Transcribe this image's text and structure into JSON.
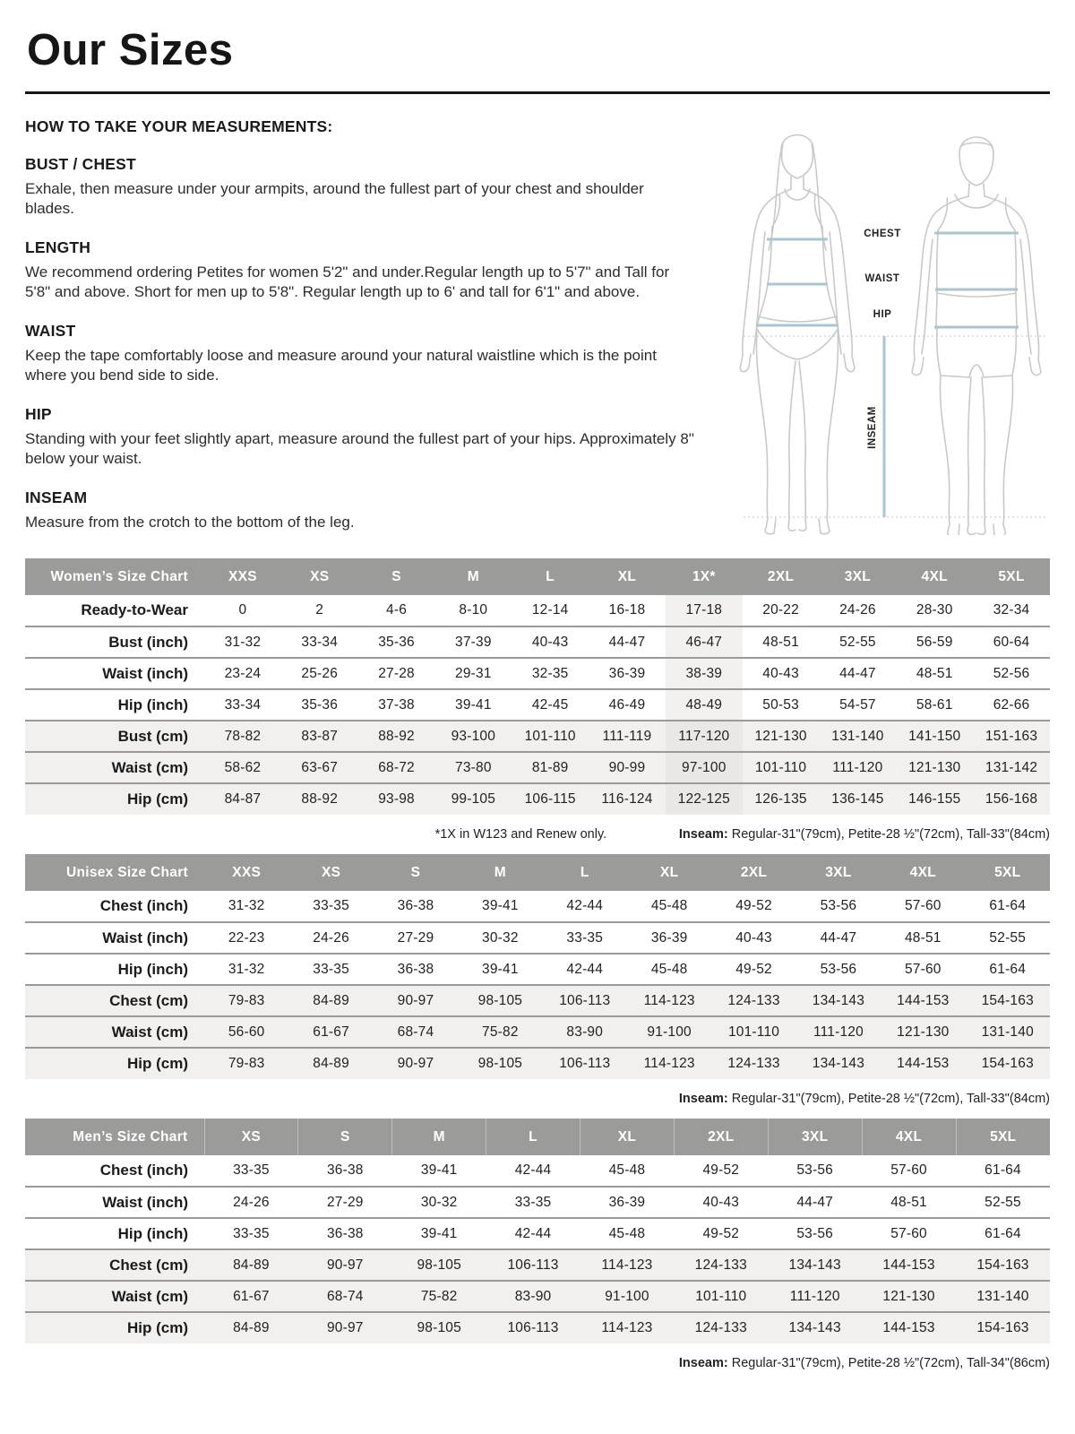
{
  "page": {
    "title": "Our Sizes"
  },
  "instructions": {
    "heading": "HOW TO TAKE YOUR MEASUREMENTS:",
    "sections": [
      {
        "title": "BUST / CHEST",
        "body": "Exhale, then measure under your armpits, around the fullest part of your chest and shoulder blades."
      },
      {
        "title": "LENGTH",
        "body": "We recommend ordering Petites for women 5'2\" and under.Regular length up to 5'7\" and Tall for 5'8\" and above. Short for men up to 5'8\". Regular length up to 6' and tall for 6'1\" and above."
      },
      {
        "title": "WAIST",
        "body": "Keep the tape comfortably loose and measure around your natural waistline which is the point where you bend side to side."
      },
      {
        "title": "HIP",
        "body": "Standing with your feet slightly apart, measure around the fullest part of your hips. Approximately 8\" below your waist."
      },
      {
        "title": "INSEAM",
        "body": "Measure from the crotch to the bottom of the leg."
      }
    ]
  },
  "diagram": {
    "chest_label": "CHEST",
    "waist_label": "WAIST",
    "hip_label": "HIP",
    "inseam_label": "INSEAM",
    "line_color": "#a9c6d2",
    "figure_color": "#c9c9c9"
  },
  "womens": {
    "title": "Women’s Size Chart",
    "columns": [
      "XXS",
      "XS",
      "S",
      "M",
      "L",
      "XL",
      "1X*",
      "2XL",
      "3XL",
      "4XL",
      "5XL"
    ],
    "highlight_index": 6,
    "rows": [
      {
        "label": "Ready-to-Wear",
        "shaded": false,
        "values": [
          "0",
          "2",
          "4-6",
          "8-10",
          "12-14",
          "16-18",
          "17-18",
          "20-22",
          "24-26",
          "28-30",
          "32-34"
        ]
      },
      {
        "label": "Bust (inch)",
        "shaded": false,
        "values": [
          "31-32",
          "33-34",
          "35-36",
          "37-39",
          "40-43",
          "44-47",
          "46-47",
          "48-51",
          "52-55",
          "56-59",
          "60-64"
        ]
      },
      {
        "label": "Waist (inch)",
        "shaded": false,
        "values": [
          "23-24",
          "25-26",
          "27-28",
          "29-31",
          "32-35",
          "36-39",
          "38-39",
          "40-43",
          "44-47",
          "48-51",
          "52-56"
        ]
      },
      {
        "label": "Hip (inch)",
        "shaded": false,
        "values": [
          "33-34",
          "35-36",
          "37-38",
          "39-41",
          "42-45",
          "46-49",
          "48-49",
          "50-53",
          "54-57",
          "58-61",
          "62-66"
        ]
      },
      {
        "label": "Bust (cm)",
        "shaded": true,
        "values": [
          "78-82",
          "83-87",
          "88-92",
          "93-100",
          "101-110",
          "111-119",
          "117-120",
          "121-130",
          "131-140",
          "141-150",
          "151-163"
        ]
      },
      {
        "label": "Waist (cm)",
        "shaded": true,
        "values": [
          "58-62",
          "63-67",
          "68-72",
          "73-80",
          "81-89",
          "90-99",
          "97-100",
          "101-110",
          "111-120",
          "121-130",
          "131-142"
        ]
      },
      {
        "label": "Hip (cm)",
        "shaded": true,
        "values": [
          "84-87",
          "88-92",
          "93-98",
          "99-105",
          "106-115",
          "116-124",
          "122-125",
          "126-135",
          "136-145",
          "146-155",
          "156-168"
        ]
      }
    ],
    "footnote": "*1X in W123 and Renew only.",
    "inseam_label": "Inseam:",
    "inseam_text": " Regular-31\"(79cm), Petite-28 ½\"(72cm), Tall-33\"(84cm)"
  },
  "unisex": {
    "title": "Unisex Size Chart",
    "columns": [
      "XXS",
      "XS",
      "S",
      "M",
      "L",
      "XL",
      "2XL",
      "3XL",
      "4XL",
      "5XL"
    ],
    "highlight_index": -1,
    "rows": [
      {
        "label": "Chest (inch)",
        "shaded": false,
        "values": [
          "31-32",
          "33-35",
          "36-38",
          "39-41",
          "42-44",
          "45-48",
          "49-52",
          "53-56",
          "57-60",
          "61-64"
        ]
      },
      {
        "label": "Waist (inch)",
        "shaded": false,
        "values": [
          "22-23",
          "24-26",
          "27-29",
          "30-32",
          "33-35",
          "36-39",
          "40-43",
          "44-47",
          "48-51",
          "52-55"
        ]
      },
      {
        "label": "Hip (inch)",
        "shaded": false,
        "values": [
          "31-32",
          "33-35",
          "36-38",
          "39-41",
          "42-44",
          "45-48",
          "49-52",
          "53-56",
          "57-60",
          "61-64"
        ]
      },
      {
        "label": "Chest (cm)",
        "shaded": true,
        "values": [
          "79-83",
          "84-89",
          "90-97",
          "98-105",
          "106-113",
          "114-123",
          "124-133",
          "134-143",
          "144-153",
          "154-163"
        ]
      },
      {
        "label": "Waist (cm)",
        "shaded": true,
        "values": [
          "56-60",
          "61-67",
          "68-74",
          "75-82",
          "83-90",
          "91-100",
          "101-110",
          "111-120",
          "121-130",
          "131-140"
        ]
      },
      {
        "label": "Hip (cm)",
        "shaded": true,
        "values": [
          "79-83",
          "84-89",
          "90-97",
          "98-105",
          "106-113",
          "114-123",
          "124-133",
          "134-143",
          "144-153",
          "154-163"
        ]
      }
    ],
    "inseam_label": "Inseam:",
    "inseam_text": " Regular-31\"(79cm), Petite-28 ½\"(72cm), Tall-33\"(84cm)"
  },
  "mens": {
    "title": "Men’s Size Chart",
    "columns": [
      "XS",
      "S",
      "M",
      "L",
      "XL",
      "2XL",
      "3XL",
      "4XL",
      "5XL"
    ],
    "highlight_index": -1,
    "rows": [
      {
        "label": "Chest (inch)",
        "shaded": false,
        "values": [
          "33-35",
          "36-38",
          "39-41",
          "42-44",
          "45-48",
          "49-52",
          "53-56",
          "57-60",
          "61-64"
        ]
      },
      {
        "label": "Waist (inch)",
        "shaded": false,
        "values": [
          "24-26",
          "27-29",
          "30-32",
          "33-35",
          "36-39",
          "40-43",
          "44-47",
          "48-51",
          "52-55"
        ]
      },
      {
        "label": "Hip (inch)",
        "shaded": false,
        "values": [
          "33-35",
          "36-38",
          "39-41",
          "42-44",
          "45-48",
          "49-52",
          "53-56",
          "57-60",
          "61-64"
        ]
      },
      {
        "label": "Chest (cm)",
        "shaded": true,
        "values": [
          "84-89",
          "90-97",
          "98-105",
          "106-113",
          "114-123",
          "124-133",
          "134-143",
          "144-153",
          "154-163"
        ]
      },
      {
        "label": "Waist (cm)",
        "shaded": true,
        "values": [
          "61-67",
          "68-74",
          "75-82",
          "83-90",
          "91-100",
          "101-110",
          "111-120",
          "121-130",
          "131-140"
        ]
      },
      {
        "label": "Hip (cm)",
        "shaded": true,
        "values": [
          "84-89",
          "90-97",
          "98-105",
          "106-113",
          "114-123",
          "124-133",
          "134-143",
          "144-153",
          "154-163"
        ]
      }
    ],
    "inseam_label": "Inseam:",
    "inseam_text": " Regular-31\"(79cm), Petite-28 ½\"(72cm), Tall-34\"(86cm)"
  }
}
